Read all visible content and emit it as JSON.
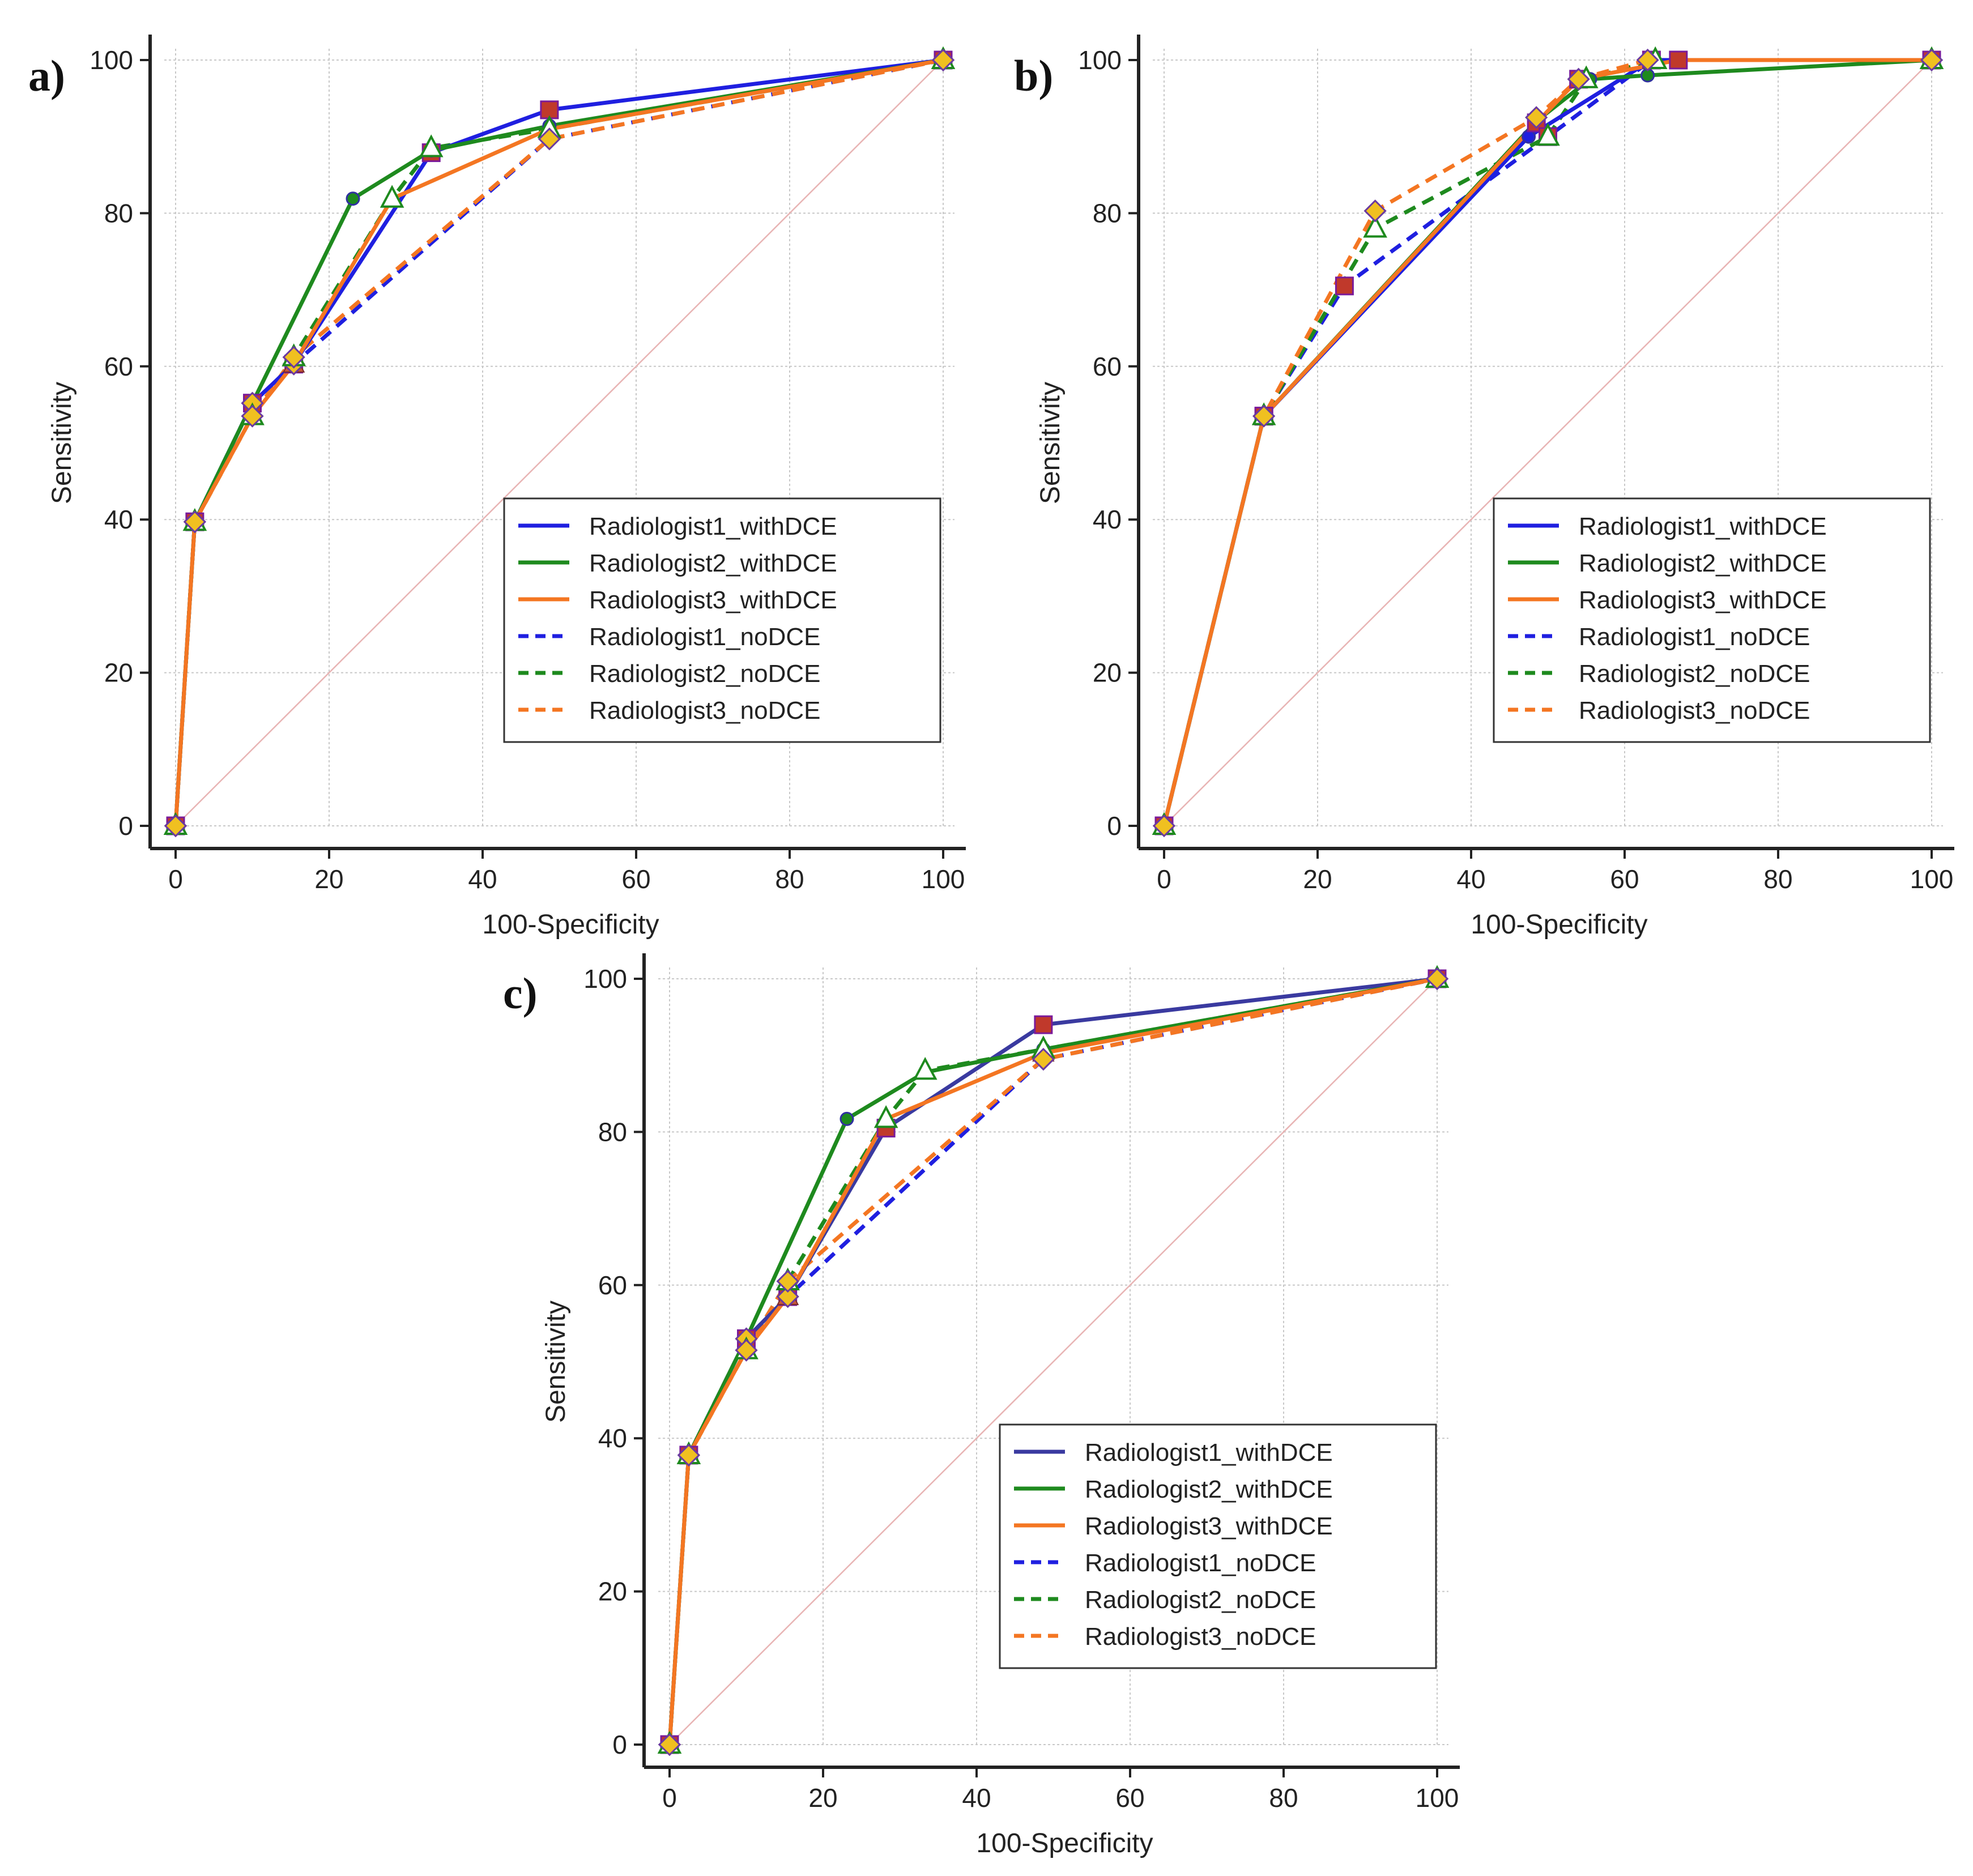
{
  "chart_data": [
    {
      "panel": "a)",
      "type": "line",
      "xlabel": "100-Specificity",
      "ylabel": "Sensitivity",
      "xlim": [
        0,
        100
      ],
      "ylim": [
        0,
        100
      ],
      "xticks": [
        0,
        20,
        40,
        60,
        80,
        100
      ],
      "yticks": [
        0,
        20,
        40,
        60,
        80,
        100
      ],
      "grid": true,
      "legend_position": "bottom-right",
      "series": [
        {
          "name": "Radiologist1_withDCE",
          "color": "#1f1fe0",
          "dash": "solid",
          "marker": "square",
          "x": [
            0,
            2.5,
            10,
            15.4,
            33.3,
            48.7,
            100
          ],
          "y": [
            0,
            39.7,
            55.2,
            60.3,
            87.9,
            93.5,
            100
          ]
        },
        {
          "name": "Radiologist2_withDCE",
          "color": "#1e8a1e",
          "dash": "solid",
          "marker": "circle",
          "x": [
            0,
            2.5,
            10,
            23.1,
            33.3,
            48.7,
            100
          ],
          "y": [
            0,
            39.7,
            55.2,
            81.9,
            88.2,
            91.4,
            100
          ]
        },
        {
          "name": "Radiologist3_withDCE",
          "color": "#f47622",
          "dash": "solid",
          "marker": "triangle",
          "x": [
            0,
            2.5,
            10,
            15.4,
            28.2,
            48.7,
            100
          ],
          "y": [
            0,
            39.7,
            53.5,
            60.3,
            81.9,
            91.0,
            100
          ]
        },
        {
          "name": "Radiologist1_noDCE",
          "color": "#1f1fe0",
          "dash": "dashed",
          "marker": "diamond",
          "x": [
            0,
            2.5,
            10,
            15.4,
            48.7,
            100
          ],
          "y": [
            0,
            39.7,
            55.2,
            60.3,
            89.7,
            100
          ]
        },
        {
          "name": "Radiologist2_noDCE",
          "color": "#1e8a1e",
          "dash": "dashed",
          "marker": "open-triangle",
          "x": [
            0,
            2.5,
            10,
            15.4,
            28.2,
            33.3,
            48.7,
            100
          ],
          "y": [
            0,
            39.7,
            53.5,
            61.2,
            81.9,
            88.5,
            91.0,
            100
          ]
        },
        {
          "name": "Radiologist3_noDCE",
          "color": "#f47622",
          "dash": "dashed",
          "marker": "diamond",
          "x": [
            0,
            2.5,
            10,
            15.4,
            48.7,
            100
          ],
          "y": [
            0,
            39.7,
            53.5,
            61.2,
            89.7,
            100
          ]
        }
      ],
      "diagonal_color": "#e8b4b4"
    },
    {
      "panel": "b)",
      "type": "line",
      "xlabel": "100-Specificity",
      "ylabel": "Sensitivity",
      "xlim": [
        0,
        100
      ],
      "ylim": [
        0,
        100
      ],
      "xticks": [
        0,
        20,
        40,
        60,
        80,
        100
      ],
      "yticks": [
        0,
        20,
        40,
        60,
        80,
        100
      ],
      "grid": true,
      "legend_position": "bottom-right",
      "series": [
        {
          "name": "Radiologist1_withDCE",
          "color": "#1f1fe0",
          "dash": "solid",
          "marker": "circle",
          "x": [
            0,
            13,
            47.5,
            63.5,
            100
          ],
          "y": [
            0,
            53.5,
            90,
            100,
            100
          ]
        },
        {
          "name": "Radiologist2_withDCE",
          "color": "#1e8a1e",
          "dash": "solid",
          "marker": "circle",
          "x": [
            0,
            13,
            48.5,
            55.5,
            63,
            100
          ],
          "y": [
            0,
            53.5,
            92,
            97.5,
            98,
            100
          ]
        },
        {
          "name": "Radiologist3_withDCE",
          "color": "#f47622",
          "dash": "solid",
          "marker": "square",
          "x": [
            0,
            13,
            48.5,
            54,
            67,
            100
          ],
          "y": [
            0,
            53.5,
            91.8,
            97.5,
            100,
            100
          ]
        },
        {
          "name": "Radiologist1_noDCE",
          "color": "#1f1fe0",
          "dash": "dashed",
          "marker": "square",
          "x": [
            0,
            13,
            23.5,
            50,
            63.5,
            100
          ],
          "y": [
            0,
            53.5,
            70.5,
            90,
            100,
            100
          ]
        },
        {
          "name": "Radiologist2_noDCE",
          "color": "#1e8a1e",
          "dash": "dashed",
          "marker": "open-triangle",
          "x": [
            0,
            13,
            27.5,
            50,
            55,
            64,
            100
          ],
          "y": [
            0,
            53.5,
            78,
            90,
            97.5,
            100,
            100
          ]
        },
        {
          "name": "Radiologist3_noDCE",
          "color": "#f47622",
          "dash": "dashed",
          "marker": "diamond",
          "x": [
            0,
            13,
            27.5,
            48.5,
            54,
            63,
            100
          ],
          "y": [
            0,
            53.5,
            80.3,
            92.5,
            97.5,
            100,
            100
          ]
        }
      ],
      "diagonal_color": "#e8b4b4"
    },
    {
      "panel": "c)",
      "type": "line",
      "xlabel": "100-Specificity",
      "ylabel": "Sensitivity",
      "xlim": [
        0,
        100
      ],
      "ylim": [
        0,
        100
      ],
      "xticks": [
        0,
        20,
        40,
        60,
        80,
        100
      ],
      "yticks": [
        0,
        20,
        40,
        60,
        80,
        100
      ],
      "grid": true,
      "legend_position": "bottom-right",
      "series": [
        {
          "name": "Radiologist1_withDCE",
          "color": "#3a3aa0",
          "dash": "solid",
          "marker": "square",
          "x": [
            0,
            2.5,
            10,
            15.4,
            28.2,
            48.7,
            100
          ],
          "y": [
            0,
            37.8,
            53,
            58.5,
            80.5,
            94,
            100
          ]
        },
        {
          "name": "Radiologist2_withDCE",
          "color": "#1e8a1e",
          "dash": "solid",
          "marker": "circle",
          "x": [
            0,
            2.5,
            10,
            23.1,
            33.3,
            48.7,
            100
          ],
          "y": [
            0,
            37.8,
            53,
            81.7,
            87.8,
            90.8,
            100
          ]
        },
        {
          "name": "Radiologist3_withDCE",
          "color": "#f47622",
          "dash": "solid",
          "marker": "triangle",
          "x": [
            0,
            2.5,
            10,
            15.4,
            28.2,
            48.7,
            100
          ],
          "y": [
            0,
            37.8,
            51.5,
            58.5,
            81.7,
            90.3,
            100
          ]
        },
        {
          "name": "Radiologist1_noDCE",
          "color": "#1f1fe0",
          "dash": "dashed",
          "marker": "diamond",
          "x": [
            0,
            2.5,
            10,
            15.4,
            48.7,
            100
          ],
          "y": [
            0,
            37.8,
            53,
            58.5,
            89.5,
            100
          ]
        },
        {
          "name": "Radiologist2_noDCE",
          "color": "#1e8a1e",
          "dash": "dashed",
          "marker": "open-triangle",
          "x": [
            0,
            2.5,
            10,
            15.4,
            28.2,
            33.3,
            48.7,
            100
          ],
          "y": [
            0,
            37.8,
            51.5,
            60.5,
            81.7,
            88,
            90.8,
            100
          ]
        },
        {
          "name": "Radiologist3_noDCE",
          "color": "#f47622",
          "dash": "dashed",
          "marker": "diamond",
          "x": [
            0,
            2.5,
            10,
            15.4,
            48.7,
            100
          ],
          "y": [
            0,
            37.8,
            51.5,
            60.5,
            89.5,
            100
          ]
        }
      ],
      "diagonal_color": "#e8b4b4"
    }
  ]
}
